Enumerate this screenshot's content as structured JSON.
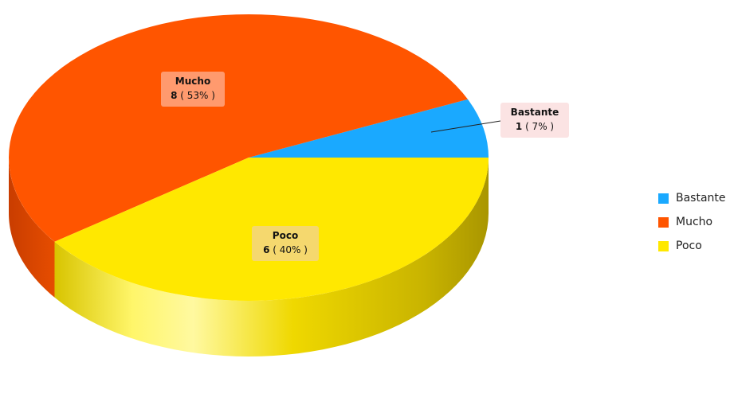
{
  "chart_data": {
    "type": "pie",
    "style": "3d",
    "title": "",
    "legend_position": "right",
    "slices": [
      {
        "label": "Bastante",
        "value": 1,
        "percent_text": "7%",
        "color": "#1aa9ff"
      },
      {
        "label": "Mucho",
        "value": 8,
        "percent_text": "53%",
        "color": "#ff5500"
      },
      {
        "label": "Poco",
        "value": 6,
        "percent_text": "40%",
        "color": "#ffe800"
      }
    ]
  }
}
